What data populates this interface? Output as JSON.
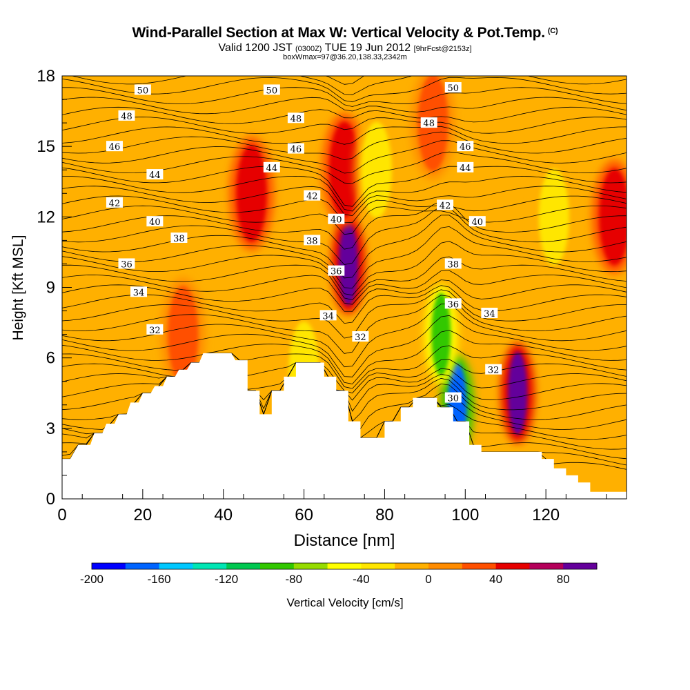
{
  "header": {
    "title": "Wind-Parallel Section at Max W: Vertical Velocity & Pot.Temp.",
    "copyright": "(C)",
    "valid_prefix": "Valid 1200 JST",
    "valid_utc": "(0300Z)",
    "valid_date": "TUE 19 Jun 2012",
    "forecast": "[9hrFcst@2153z]",
    "boxwmax": "boxWmax=97@36.20,138.33,2342m"
  },
  "colors": {
    "background_field": "#ffb000",
    "terrain": "#ffffff",
    "contour_line": "#000000"
  },
  "chart_data": {
    "type": "heatmap",
    "xlabel": "Distance [nm]",
    "ylabel": "Height [Kft MSL]",
    "xlim": [
      0,
      140
    ],
    "ylim": [
      0,
      18
    ],
    "x_ticks": [
      0,
      20,
      40,
      60,
      80,
      100,
      120
    ],
    "y_ticks": [
      0,
      3,
      6,
      9,
      12,
      15,
      18
    ],
    "colorbar": {
      "label": "Vertical Velocity [cm/s]",
      "tick_labels": [
        "-200",
        "-160",
        "-120",
        "-80",
        "-40",
        "0",
        "40",
        "80"
      ],
      "tick_values": [
        -200,
        -160,
        -120,
        -80,
        -40,
        0,
        40,
        80
      ],
      "range": [
        -200,
        100
      ],
      "bin_width": 20,
      "colors": [
        "#0000ff",
        "#0064ff",
        "#00c8ff",
        "#00e6b4",
        "#00c850",
        "#32c800",
        "#96dc00",
        "#ffff00",
        "#ffe600",
        "#ffb000",
        "#ff8c00",
        "#ff5000",
        "#e60000",
        "#b4005a",
        "#64009b"
      ]
    },
    "terrain_kft": [
      [
        0,
        1.7
      ],
      [
        2,
        1.7
      ],
      [
        4,
        2.3
      ],
      [
        7,
        2.3
      ],
      [
        8,
        2.8
      ],
      [
        10,
        2.8
      ],
      [
        11,
        3.2
      ],
      [
        13,
        3.2
      ],
      [
        14,
        3.6
      ],
      [
        16,
        3.6
      ],
      [
        17,
        4.1
      ],
      [
        19,
        4.1
      ],
      [
        20,
        4.5
      ],
      [
        22,
        4.5
      ],
      [
        23,
        4.8
      ],
      [
        25,
        4.8
      ],
      [
        26,
        5.2
      ],
      [
        28,
        5.2
      ],
      [
        29,
        5.5
      ],
      [
        31,
        5.5
      ],
      [
        32,
        5.8
      ],
      [
        34,
        5.8
      ],
      [
        35,
        6.2
      ],
      [
        42,
        6.2
      ],
      [
        43,
        5.9
      ],
      [
        46,
        5.9
      ],
      [
        46,
        4.6
      ],
      [
        49,
        4.6
      ],
      [
        49,
        3.6
      ],
      [
        52,
        3.6
      ],
      [
        52,
        4.6
      ],
      [
        55,
        4.6
      ],
      [
        55,
        5.2
      ],
      [
        58,
        5.2
      ],
      [
        58,
        5.8
      ],
      [
        65,
        5.8
      ],
      [
        65,
        5.2
      ],
      [
        68,
        5.2
      ],
      [
        68,
        4.6
      ],
      [
        71,
        4.6
      ],
      [
        71,
        3.3
      ],
      [
        74,
        3.3
      ],
      [
        74,
        2.6
      ],
      [
        80,
        2.6
      ],
      [
        80,
        3.3
      ],
      [
        84,
        3.3
      ],
      [
        84,
        3.9
      ],
      [
        87,
        3.9
      ],
      [
        87,
        4.3
      ],
      [
        93,
        4.3
      ],
      [
        93,
        3.9
      ],
      [
        97,
        3.9
      ],
      [
        97,
        3.3
      ],
      [
        101,
        3.3
      ],
      [
        101,
        2.3
      ],
      [
        104,
        2.3
      ],
      [
        104,
        2.0
      ],
      [
        119,
        2.0
      ],
      [
        119,
        1.7
      ],
      [
        122,
        1.7
      ],
      [
        122,
        1.3
      ],
      [
        125,
        1.3
      ],
      [
        125,
        1.0
      ],
      [
        128,
        1.0
      ],
      [
        128,
        0.7
      ],
      [
        131,
        0.7
      ],
      [
        131,
        0.3
      ],
      [
        140,
        0.3
      ]
    ],
    "theta_contour_labels": [
      {
        "x": 20,
        "y": 17.4,
        "text": "50"
      },
      {
        "x": 52,
        "y": 17.4,
        "text": "50"
      },
      {
        "x": 97,
        "y": 17.5,
        "text": "50"
      },
      {
        "x": 16,
        "y": 16.3,
        "text": "48"
      },
      {
        "x": 58,
        "y": 16.2,
        "text": "48"
      },
      {
        "x": 91,
        "y": 16.0,
        "text": "48"
      },
      {
        "x": 13,
        "y": 15.0,
        "text": "46"
      },
      {
        "x": 58,
        "y": 14.9,
        "text": "46"
      },
      {
        "x": 100,
        "y": 15.0,
        "text": "46"
      },
      {
        "x": 23,
        "y": 13.8,
        "text": "44"
      },
      {
        "x": 52,
        "y": 14.1,
        "text": "44"
      },
      {
        "x": 100,
        "y": 14.1,
        "text": "44"
      },
      {
        "x": 13,
        "y": 12.6,
        "text": "42"
      },
      {
        "x": 62,
        "y": 12.9,
        "text": "42"
      },
      {
        "x": 95,
        "y": 12.5,
        "text": "42"
      },
      {
        "x": 23,
        "y": 11.8,
        "text": "40"
      },
      {
        "x": 68,
        "y": 11.9,
        "text": "40"
      },
      {
        "x": 103,
        "y": 11.8,
        "text": "40"
      },
      {
        "x": 29,
        "y": 11.1,
        "text": "38"
      },
      {
        "x": 62,
        "y": 11.0,
        "text": "38"
      },
      {
        "x": 97,
        "y": 10.0,
        "text": "38"
      },
      {
        "x": 16,
        "y": 10.0,
        "text": "36"
      },
      {
        "x": 68,
        "y": 9.7,
        "text": "36"
      },
      {
        "x": 97,
        "y": 8.3,
        "text": "36"
      },
      {
        "x": 19,
        "y": 8.8,
        "text": "34"
      },
      {
        "x": 66,
        "y": 7.8,
        "text": "34"
      },
      {
        "x": 106,
        "y": 7.9,
        "text": "34"
      },
      {
        "x": 23,
        "y": 7.2,
        "text": "32"
      },
      {
        "x": 74,
        "y": 6.9,
        "text": "32"
      },
      {
        "x": 107,
        "y": 5.5,
        "text": "32"
      },
      {
        "x": 97,
        "y": 4.3,
        "text": "30"
      }
    ],
    "velocity_features": [
      {
        "x": 71,
        "y": 10.0,
        "value": 95
      },
      {
        "x": 70,
        "y": 14.0,
        "value": 50
      },
      {
        "x": 113,
        "y": 4.5,
        "value": 80
      },
      {
        "x": 98,
        "y": 4.0,
        "value": -180
      },
      {
        "x": 94,
        "y": 7.0,
        "value": -90
      },
      {
        "x": 47,
        "y": 13.0,
        "value": 40
      },
      {
        "x": 30,
        "y": 7.0,
        "value": 35
      },
      {
        "x": 137,
        "y": 12.0,
        "value": 40
      },
      {
        "x": 92,
        "y": 16.0,
        "value": 30
      },
      {
        "x": 78,
        "y": 14.0,
        "value": -40
      },
      {
        "x": 122,
        "y": 12.0,
        "value": -30
      },
      {
        "x": 60,
        "y": 5.5,
        "value": -30
      }
    ]
  }
}
